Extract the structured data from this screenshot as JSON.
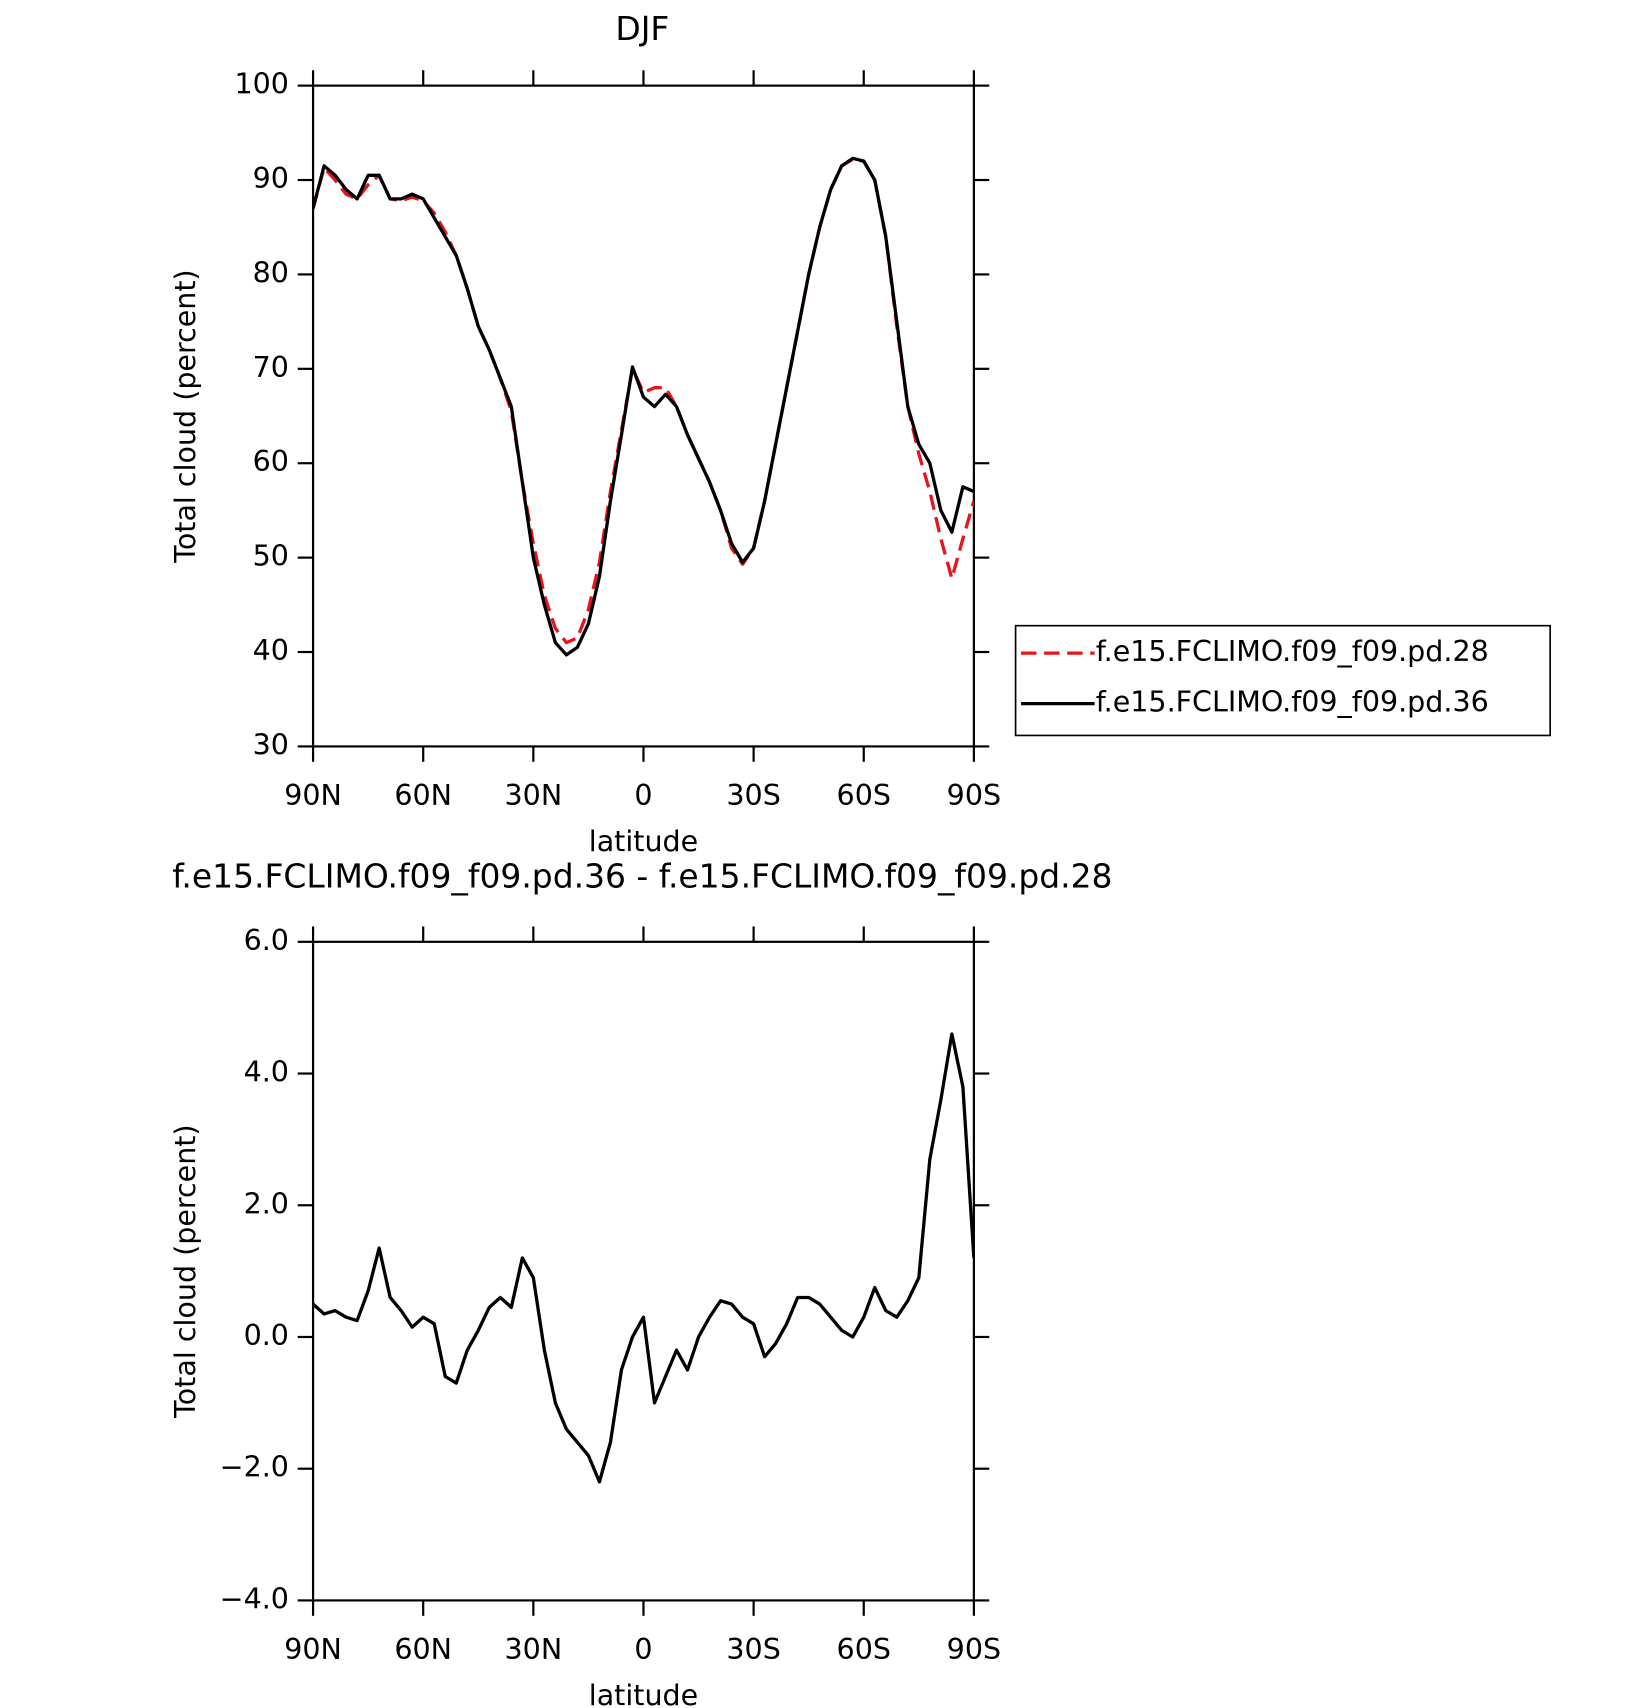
{
  "chart_data": [
    {
      "type": "line",
      "title": "DJF",
      "xlabel": "latitude",
      "ylabel": "Total cloud (percent)",
      "x": [
        90,
        87,
        84,
        81,
        78,
        75,
        72,
        69,
        66,
        63,
        60,
        57,
        54,
        51,
        48,
        45,
        42,
        39,
        36,
        33,
        30,
        27,
        24,
        21,
        18,
        15,
        12,
        9,
        6,
        3,
        0,
        -3,
        -6,
        -9,
        -12,
        -15,
        -18,
        -21,
        -24,
        -27,
        -30,
        -33,
        -36,
        -39,
        -42,
        -45,
        -48,
        -51,
        -54,
        -57,
        -60,
        -63,
        -66,
        -69,
        -72,
        -75,
        -78,
        -81,
        -84,
        -87,
        -90
      ],
      "series": [
        {
          "name": "f.e15.FCLIMO.f09_f09.pd.28",
          "color": "#e8141a",
          "linestyle": "dashed",
          "values": [
            87,
            91.3,
            90,
            88.5,
            88,
            89.5,
            90.5,
            88,
            87.8,
            88.2,
            87.8,
            86.5,
            84.5,
            82,
            78.5,
            74.5,
            72,
            69,
            65.5,
            58,
            51.5,
            46,
            42.5,
            41,
            41.5,
            44.5,
            49.5,
            57,
            63.5,
            70,
            67.5,
            68,
            68,
            66,
            63,
            60.5,
            58,
            55,
            51,
            49.3,
            51,
            56,
            62,
            68,
            74,
            80,
            85,
            89,
            91.5,
            92.2,
            92,
            90,
            84,
            74.5,
            66,
            61,
            57,
            52,
            47.8,
            52,
            56
          ]
        },
        {
          "name": "f.e15.FCLIMO.f09_f09.pd.36",
          "color": "#000000",
          "linestyle": "solid",
          "values": [
            87,
            91.5,
            90.5,
            89,
            88,
            90.5,
            90.5,
            88,
            88,
            88.5,
            88,
            86,
            84,
            82,
            78.5,
            74.5,
            72,
            69,
            66,
            58,
            50,
            45,
            41,
            39.7,
            40.5,
            43,
            48,
            56,
            63,
            70.2,
            67,
            66,
            67.3,
            66,
            63,
            60.5,
            58,
            55,
            51.5,
            49.5,
            51,
            56,
            62,
            68,
            74,
            80,
            85,
            89,
            91.5,
            92.3,
            92,
            90,
            84,
            75,
            66,
            62,
            60,
            55,
            52.7,
            57.5,
            57
          ]
        }
      ],
      "xlim": [
        90,
        -90
      ],
      "ylim": [
        30,
        100
      ],
      "xticks": [
        {
          "value": 90,
          "label": "90N"
        },
        {
          "value": 60,
          "label": "60N"
        },
        {
          "value": 30,
          "label": "30N"
        },
        0,
        {
          "value": -30,
          "label": "30S"
        },
        {
          "value": -60,
          "label": "60S"
        },
        {
          "value": -90,
          "label": "90S"
        }
      ],
      "yticks": [
        30,
        40,
        50,
        60,
        70,
        80,
        90,
        100
      ],
      "legend": "right"
    },
    {
      "type": "line",
      "title": "f.e15.FCLIMO.f09_f09.pd.36 - f.e15.FCLIMO.f09_f09.pd.28",
      "xlabel": "latitude",
      "ylabel": "Total cloud (percent)",
      "x": [
        90,
        87,
        84,
        81,
        78,
        75,
        72,
        69,
        66,
        63,
        60,
        57,
        54,
        51,
        48,
        45,
        42,
        39,
        36,
        33,
        30,
        27,
        24,
        21,
        18,
        15,
        12,
        9,
        6,
        3,
        0,
        -3,
        -6,
        -9,
        -12,
        -15,
        -18,
        -21,
        -24,
        -27,
        -30,
        -33,
        -36,
        -39,
        -42,
        -45,
        -48,
        -51,
        -54,
        -57,
        -60,
        -63,
        -66,
        -69,
        -72,
        -75,
        -78,
        -81,
        -84,
        -87,
        -90
      ],
      "series": [
        {
          "color": "#000000",
          "linestyle": "solid",
          "values": [
            0.5,
            0.35,
            0.4,
            0.3,
            0.25,
            0.7,
            1.35,
            0.6,
            0.4,
            0.15,
            0.3,
            0.2,
            -0.6,
            -0.7,
            -0.2,
            0.1,
            0.45,
            0.6,
            0.45,
            1.2,
            0.9,
            -0.2,
            -1.0,
            -1.4,
            -1.6,
            -1.8,
            -2.2,
            -1.6,
            -0.5,
            0.0,
            0.3,
            -1.0,
            -0.6,
            -0.2,
            -0.5,
            0.0,
            0.3,
            0.55,
            0.5,
            0.3,
            0.2,
            -0.3,
            -0.1,
            0.2,
            0.6,
            0.6,
            0.5,
            0.3,
            0.1,
            0.0,
            0.3,
            0.75,
            0.4,
            0.3,
            0.55,
            0.9,
            2.7,
            3.6,
            4.6,
            3.8,
            1.2
          ]
        }
      ],
      "xlim": [
        90,
        -90
      ],
      "ylim": [
        -4,
        6
      ],
      "xticks": [
        {
          "value": 90,
          "label": "90N"
        },
        {
          "value": 60,
          "label": "60N"
        },
        {
          "value": 30,
          "label": "30N"
        },
        0,
        {
          "value": -30,
          "label": "30S"
        },
        {
          "value": -60,
          "label": "60S"
        },
        {
          "value": -90,
          "label": "90S"
        }
      ],
      "yticks": [
        {
          "value": -4,
          "label": "−4.0"
        },
        {
          "value": -2,
          "label": "−2.0"
        },
        {
          "value": 0,
          "label": "0.0"
        },
        {
          "value": 2,
          "label": "2.0"
        },
        {
          "value": 4,
          "label": "4.0"
        },
        {
          "value": 6,
          "label": "6.0"
        }
      ]
    }
  ]
}
